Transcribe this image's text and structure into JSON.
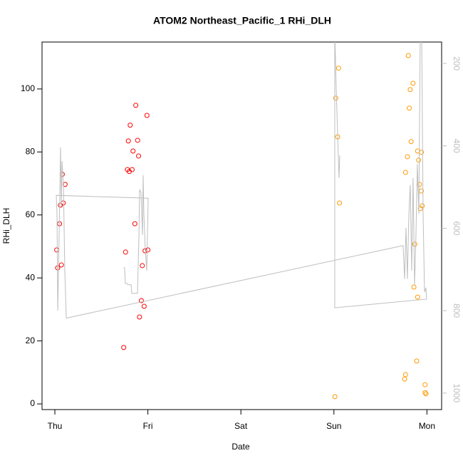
{
  "chart_data": {
    "type": "scatter",
    "title": "ATOM2 Northeast_Pacific_1 RHi_DLH",
    "xlabel": "Date",
    "ylabel": "RHi_DLH",
    "xlim": [
      -0.138,
      4.158
    ],
    "xticks": [
      {
        "value": 0,
        "label": "Thu"
      },
      {
        "value": 1,
        "label": "Fri"
      },
      {
        "value": 2,
        "label": "Sat"
      },
      {
        "value": 3,
        "label": "Sun"
      },
      {
        "value": 4,
        "label": "Mon"
      }
    ],
    "ylim": [
      -1.8,
      114.9
    ],
    "yticks": [
      0,
      20,
      40,
      60,
      80,
      100
    ],
    "y2lim": [
      1040,
      148
    ],
    "y2ticks": [
      200,
      400,
      600,
      800,
      1000
    ],
    "series": [
      {
        "color": "#ff0000",
        "x": [
          0.02,
          0.03,
          0.05,
          0.06,
          0.07,
          0.08,
          0.09,
          0.11,
          0.74,
          0.76,
          0.78,
          0.79,
          0.8,
          0.81,
          0.83,
          0.84,
          0.86,
          0.87,
          0.89,
          0.9,
          0.91,
          0.93,
          0.94,
          0.96,
          0.97,
          0.99,
          1.0
        ],
        "values": [
          48.9,
          43.2,
          57.2,
          63.1,
          44.1,
          72.9,
          63.8,
          69.7,
          17.9,
          48.2,
          74.4,
          83.5,
          73.8,
          88.5,
          74.4,
          80.3,
          57.2,
          94.8,
          83.7,
          78.7,
          27.6,
          32.8,
          43.9,
          31.0,
          48.6,
          91.6,
          48.9
        ]
      },
      {
        "color": "#ff9900",
        "x": [
          3.01,
          3.02,
          3.04,
          3.05,
          3.06,
          3.76,
          3.77,
          3.77,
          3.79,
          3.8,
          3.81,
          3.82,
          3.83,
          3.85,
          3.86,
          3.87,
          3.89,
          3.9,
          3.9,
          3.91,
          3.92,
          3.93,
          3.94,
          3.94,
          3.95,
          3.98,
          3.98,
          3.99
        ],
        "values": [
          2.3,
          97.1,
          84.8,
          106.6,
          63.8,
          7.9,
          9.3,
          73.5,
          78.5,
          110.6,
          93.9,
          99.8,
          83.3,
          101.8,
          37.1,
          50.7,
          13.6,
          33.9,
          80.3,
          77.4,
          69.7,
          62.0,
          79.9,
          67.6,
          62.9,
          3.6,
          6.1,
          3.2
        ]
      },
      {
        "color": "#bebebe",
        "axis": "y2",
        "type": "line",
        "x": [
          0.743,
          0.75,
          0.758,
          0.773,
          0.789,
          0.819,
          0.827,
          0.888,
          0.904,
          0.911,
          0.926,
          0.934,
          0.942,
          0.949,
          0.957,
          0.972,
          0.988,
          1.003,
          0.015,
          0.023,
          0.031,
          0.046,
          0.061,
          0.069,
          0.077,
          0.092,
          0.107,
          0.123,
          3.744,
          3.76,
          3.775,
          3.79,
          3.806,
          3.821,
          3.836,
          3.851,
          3.867,
          3.882,
          3.897,
          3.913,
          3.928,
          3.943,
          3.959,
          3.974,
          3.989,
          3.997,
          3.009,
          3.009,
          3.024,
          3.04,
          3.055,
          3.063
        ],
        "values": [
          694,
          698,
          734,
          734,
          737,
          737,
          758,
          758,
          616,
          506,
          513,
          565,
          616,
          471,
          565,
          651,
          703,
          527,
          520,
          565,
          800,
          616,
          404,
          547,
          437,
          495,
          703,
          818,
          642,
          723,
          599,
          723,
          565,
          495,
          703,
          478,
          737,
          616,
          444,
          565,
          120,
          120,
          565,
          755,
          744,
          772,
          793,
          120,
          254,
          374,
          478,
          423
        ]
      }
    ]
  }
}
